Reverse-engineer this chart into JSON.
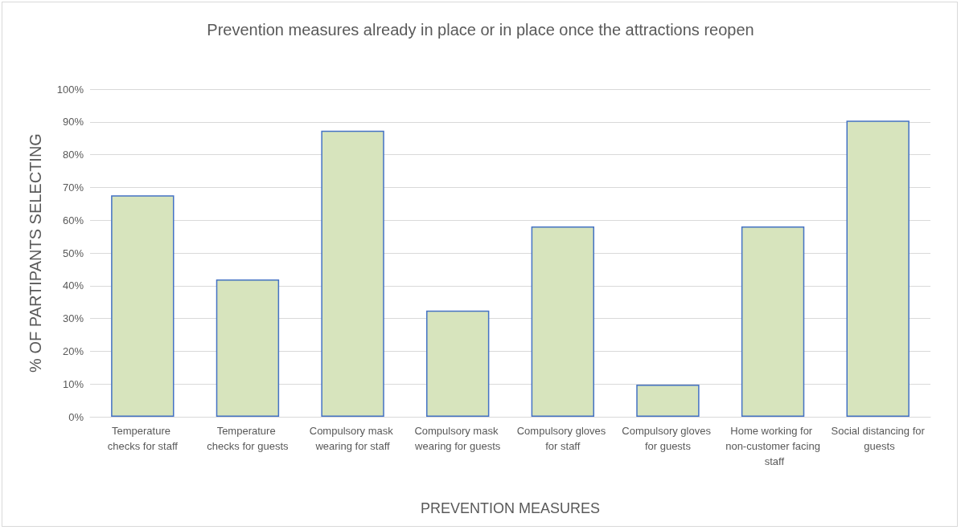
{
  "chart_data": {
    "type": "bar",
    "title": "Prevention measures already in place or in place once the attractions reopen",
    "xlabel": "PREVENTION MEASURES",
    "ylabel": "% OF PARTIPANTS SELECTING",
    "categories": [
      "Temperature checks for staff",
      "Temperature checks for guests",
      "Compulsory mask wearing for staff",
      "Compulsory mask wearing for guests",
      "Compulsory gloves for staff",
      "Compulsory gloves for guests",
      "Home working for non-customer facing staff",
      "Social distancing for guests"
    ],
    "values": [
      67.6,
      41.9,
      87.3,
      32.4,
      58.1,
      9.8,
      58.1,
      90.4
    ],
    "color": "#d7e4bd",
    "ylim": [
      0,
      100
    ],
    "yticks": [
      {
        "value": 0,
        "label": "0%"
      },
      {
        "value": 10,
        "label": "10%"
      },
      {
        "value": 20,
        "label": "20%"
      },
      {
        "value": 30,
        "label": "30%"
      },
      {
        "value": 40,
        "label": "40%"
      },
      {
        "value": 50,
        "label": "50%"
      },
      {
        "value": 60,
        "label": "60%"
      },
      {
        "value": 70,
        "label": "70%"
      },
      {
        "value": 80,
        "label": "80%"
      },
      {
        "value": 90,
        "label": "90%"
      },
      {
        "value": 100,
        "label": "100%"
      }
    ],
    "grid": "y"
  }
}
